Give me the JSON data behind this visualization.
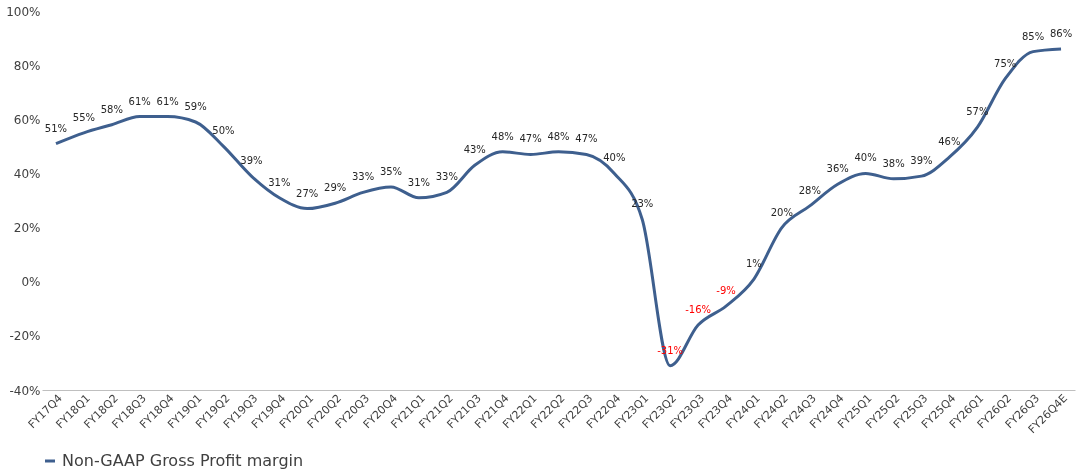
{
  "chart_data": {
    "type": "line",
    "categories": [
      "FY17Q4",
      "FY18Q1",
      "FY18Q2",
      "FY18Q3",
      "FY18Q4",
      "FY19Q1",
      "FY19Q2",
      "FY19Q3",
      "FY19Q4",
      "FY20Q1",
      "FY20Q2",
      "FY20Q3",
      "FY20Q4",
      "FY21Q1",
      "FY21Q2",
      "FY21Q3",
      "FY21Q4",
      "FY22Q1",
      "FY22Q2",
      "FY22Q3",
      "FY22Q4",
      "FY23Q1",
      "FY23Q2",
      "FY23Q3",
      "FY23Q4",
      "FY24Q1",
      "FY24Q2",
      "FY24Q3",
      "FY24Q4",
      "FY25Q1",
      "FY25Q2",
      "FY25Q3",
      "FY25Q4",
      "FY26Q1",
      "FY26Q2",
      "FY26Q3",
      "FY26Q4E"
    ],
    "series": [
      {
        "name": "Non-GAAP Gross Profit margin",
        "color": "#3e5f8e",
        "values": [
          51,
          55,
          58,
          61,
          61,
          59,
          50,
          39,
          31,
          27,
          29,
          33,
          35,
          31,
          33,
          43,
          48,
          47,
          48,
          47,
          40,
          23,
          -31,
          -16,
          -9,
          1,
          20,
          28,
          36,
          40,
          38,
          39,
          46,
          57,
          75,
          85,
          86
        ]
      }
    ],
    "value_labels": [
      "51%",
      "55%",
      "58%",
      "61%",
      "61%",
      "59%",
      "50%",
      "39%",
      "31%",
      "27%",
      "29%",
      "33%",
      "35%",
      "31%",
      "33%",
      "43%",
      "48%",
      "47%",
      "48%",
      "47%",
      "40%",
      "23%",
      "-31%",
      "-16%",
      "-9%",
      "1%",
      "20%",
      "28%",
      "36%",
      "40%",
      "38%",
      "39%",
      "46%",
      "57%",
      "75%",
      "85%",
      "86%"
    ],
    "ylim": [
      -40,
      100
    ],
    "yticks": [
      {
        "value": -40,
        "label": "-40%"
      },
      {
        "value": -20,
        "label": "-20%"
      },
      {
        "value": 0,
        "label": "0%"
      },
      {
        "value": 20,
        "label": "20%"
      },
      {
        "value": 40,
        "label": "40%"
      },
      {
        "value": 60,
        "label": "60%"
      },
      {
        "value": 80,
        "label": "80%"
      },
      {
        "value": 100,
        "label": "100%"
      }
    ],
    "grid": false,
    "legend": "bottom",
    "marker": "none",
    "line_style": "solid"
  }
}
